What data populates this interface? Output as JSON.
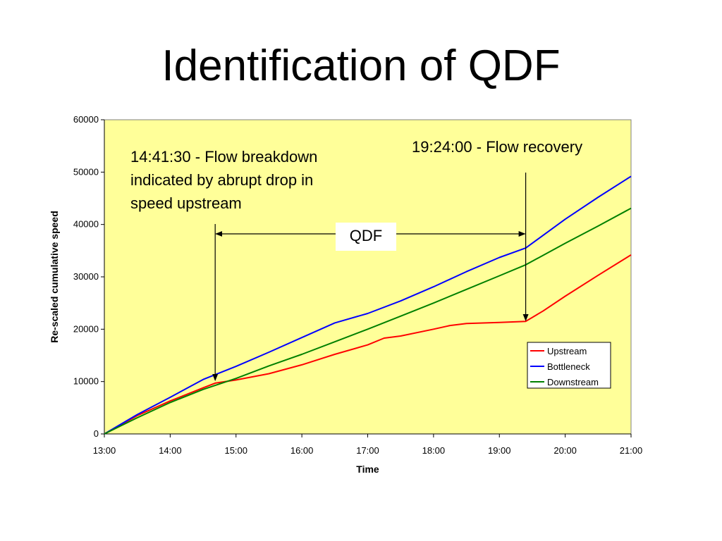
{
  "slide": {
    "title": "Identification of QDF"
  },
  "colors": {
    "plot_background": "#FFFF99",
    "upstream": "#FF0000",
    "bottleneck": "#0000FF",
    "downstream": "#008000"
  },
  "chart_data": {
    "type": "line",
    "title": "",
    "xlabel": "Time",
    "ylabel": "Re-scaled cumulative speed",
    "xlim": [
      "13:00",
      "21:00"
    ],
    "ylim": [
      0,
      60000
    ],
    "x_ticks": [
      "13:00",
      "14:00",
      "15:00",
      "16:00",
      "17:00",
      "18:00",
      "19:00",
      "20:00",
      "21:00"
    ],
    "y_ticks": [
      0,
      10000,
      20000,
      30000,
      40000,
      50000,
      60000
    ],
    "grid": false,
    "legend_position": "right",
    "series": [
      {
        "name": "Upstream",
        "color": "#FF0000",
        "x": [
          "13:00",
          "13:30",
          "14:00",
          "14:30",
          "14:41",
          "15:00",
          "15:30",
          "16:00",
          "16:30",
          "17:00",
          "17:15",
          "17:30",
          "18:00",
          "18:15",
          "18:30",
          "19:00",
          "19:24",
          "19:40",
          "20:00",
          "20:30",
          "21:00"
        ],
        "y": [
          0,
          3500,
          6300,
          8800,
          9700,
          10300,
          11500,
          13200,
          15200,
          17000,
          18300,
          18700,
          20000,
          20700,
          21100,
          21300,
          21500,
          23500,
          26300,
          30300,
          34200
        ]
      },
      {
        "name": "Bottleneck",
        "color": "#0000FF",
        "x": [
          "13:00",
          "13:30",
          "14:00",
          "14:30",
          "15:00",
          "15:30",
          "16:00",
          "16:30",
          "17:00",
          "17:30",
          "18:00",
          "18:30",
          "19:00",
          "19:24",
          "20:00",
          "20:30",
          "21:00"
        ],
        "y": [
          0,
          3700,
          7000,
          10400,
          12900,
          15600,
          18400,
          21200,
          23000,
          25400,
          28100,
          31000,
          33700,
          35500,
          41000,
          45200,
          49200
        ]
      },
      {
        "name": "Downstream",
        "color": "#008000",
        "x": [
          "13:00",
          "13:30",
          "14:00",
          "14:30",
          "15:00",
          "15:30",
          "16:00",
          "16:30",
          "17:00",
          "17:30",
          "18:00",
          "18:30",
          "19:00",
          "19:24",
          "20:00",
          "20:30",
          "21:00"
        ],
        "y": [
          0,
          3100,
          6000,
          8500,
          10600,
          13000,
          15200,
          17600,
          20000,
          22500,
          25000,
          27600,
          30200,
          32300,
          36400,
          39700,
          43100
        ]
      }
    ],
    "annotations": {
      "breakdown_lines": [
        "14:41:30 - Flow breakdown",
        "indicated by abrupt drop in",
        "speed upstream"
      ],
      "recovery": "19:24:00 - Flow recovery",
      "qdf_label": "QDF",
      "breakdown_time": "14:41",
      "recovery_time": "19:24"
    }
  }
}
